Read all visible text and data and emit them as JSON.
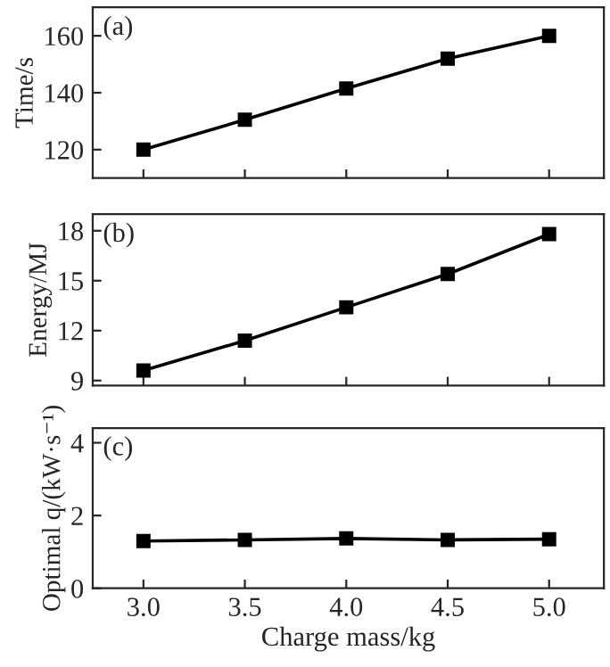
{
  "chart_data": [
    {
      "type": "line",
      "ylabel": "Time/s",
      "annotations": [
        "(a)"
      ],
      "x": [
        3.0,
        3.5,
        4.0,
        4.5,
        5.0
      ],
      "series": [
        {
          "color": "#000000",
          "values": [
            120,
            130.5,
            141.5,
            152,
            160
          ]
        }
      ],
      "xlim": [
        2.75,
        5.27
      ],
      "ylim": [
        110,
        170
      ],
      "xticks": [
        3.0,
        3.5,
        4.0,
        4.5,
        5.0
      ],
      "yticks": [
        120,
        140,
        160
      ],
      "tick_labels": "y",
      "marker": "square",
      "line_style": "solid"
    },
    {
      "type": "line",
      "ylabel": "Energy/MJ",
      "annotations": [
        "(b)"
      ],
      "x": [
        3.0,
        3.5,
        4.0,
        4.5,
        5.0
      ],
      "series": [
        {
          "color": "#000000",
          "values": [
            9.6,
            11.4,
            13.4,
            15.4,
            17.8
          ]
        }
      ],
      "xlim": [
        2.75,
        5.27
      ],
      "ylim": [
        8.7,
        19
      ],
      "xticks": [
        3.0,
        3.5,
        4.0,
        4.5,
        5.0
      ],
      "yticks": [
        9,
        12,
        15,
        18
      ],
      "tick_labels": "y",
      "marker": "square",
      "line_style": "solid"
    },
    {
      "type": "line",
      "xlabel": "Charge mass/kg",
      "ylabel": "Optimal q/(kW·s⁻¹)",
      "annotations": [
        "(c)"
      ],
      "x": [
        3.0,
        3.5,
        4.0,
        4.5,
        5.0
      ],
      "series": [
        {
          "color": "#000000",
          "values": [
            1.3,
            1.33,
            1.37,
            1.33,
            1.35
          ]
        }
      ],
      "xlim": [
        2.75,
        5.27
      ],
      "ylim": [
        0,
        4.4
      ],
      "xticks": [
        {
          "value": 3.0,
          "label": "3.0"
        },
        {
          "value": 3.5,
          "label": "3.5"
        },
        {
          "value": 4.0,
          "label": "4.0"
        },
        {
          "value": 4.5,
          "label": "4.5"
        },
        {
          "value": 5.0,
          "label": "5.0"
        }
      ],
      "yticks": [
        0,
        2,
        4
      ],
      "marker": "square",
      "line_style": "solid"
    }
  ]
}
